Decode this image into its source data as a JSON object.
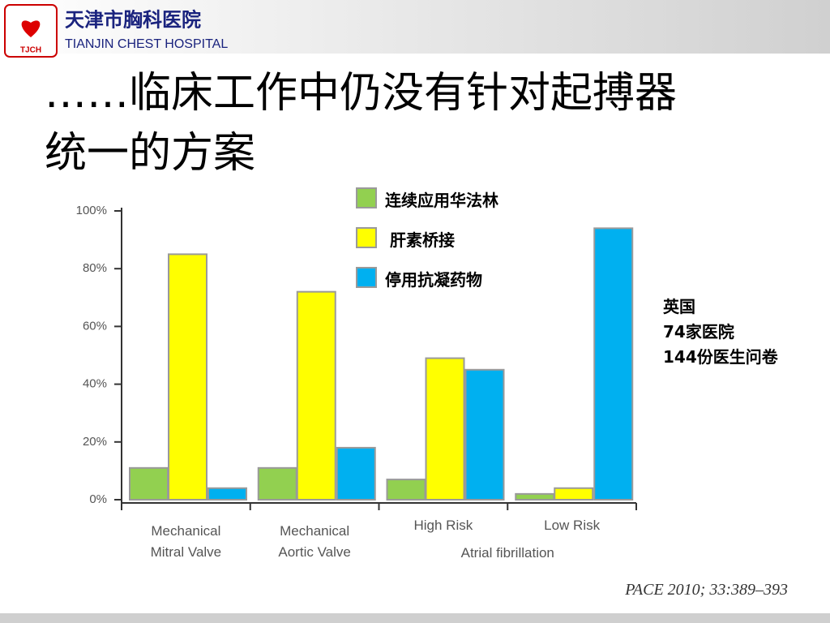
{
  "header": {
    "logo_text": "TJCH",
    "hospital_cn": "天津市胸科医院",
    "hospital_en": "TIANJIN CHEST HOSPITAL"
  },
  "title": [
    "……临床工作中仍没有针对起搏器",
    "统一的方案"
  ],
  "note": [
    "英国",
    "74家医院",
    "144份医生问卷"
  ],
  "citation": "PACE 2010; 33:389–393",
  "chart_data": {
    "type": "bar",
    "categories": [
      "Mechanical Mitral Valve",
      "Mechanical Aortic Valve",
      "High Risk",
      "Low Risk"
    ],
    "category_group": "Atrial fibrillation",
    "series": [
      {
        "name": "连续应用华法林",
        "color": "#92d050",
        "values": [
          11,
          11,
          7,
          2
        ]
      },
      {
        "name": "肝素桥接",
        "color": "#ffff00",
        "values": [
          85,
          72,
          49,
          4
        ]
      },
      {
        "name": "停用抗凝药物",
        "color": "#00b0f0",
        "values": [
          4,
          18,
          45,
          94
        ]
      }
    ],
    "ylim": [
      0,
      100
    ],
    "yticks": [
      {
        "value": 0,
        "label": "0%"
      },
      {
        "value": 20,
        "label": "20%"
      },
      {
        "value": 40,
        "label": "40%"
      },
      {
        "value": 60,
        "label": "60%"
      },
      {
        "value": 80,
        "label": "80%"
      },
      {
        "value": 100,
        "label": "100%"
      }
    ]
  }
}
